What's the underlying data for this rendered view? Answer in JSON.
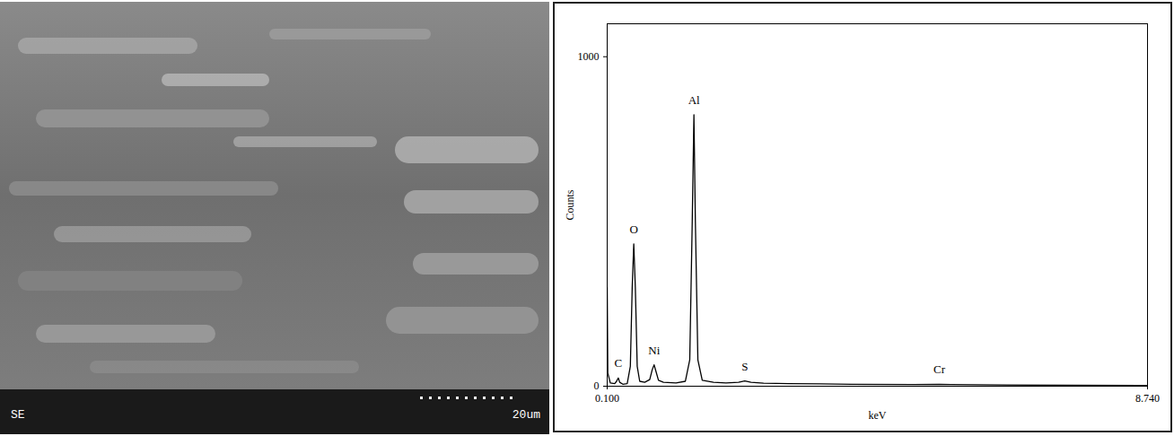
{
  "micrograph": {
    "detector": "SE",
    "scale_bar": "20um"
  },
  "chart_data": {
    "type": "line",
    "xlabel": "keV",
    "ylabel": "Counts",
    "x": [
      0.1,
      0.11,
      0.15,
      0.22,
      0.25,
      0.277,
      0.3,
      0.35,
      0.42,
      0.47,
      0.5,
      0.525,
      0.55,
      0.58,
      0.62,
      0.7,
      0.78,
      0.82,
      0.85,
      0.88,
      0.92,
      1.0,
      1.2,
      1.35,
      1.42,
      1.46,
      1.487,
      1.51,
      1.55,
      1.62,
      1.8,
      2.0,
      2.2,
      2.3,
      2.4,
      2.6,
      3.0,
      3.5,
      4.0,
      5.0,
      5.41,
      5.6,
      6.5,
      7.5,
      8.74
    ],
    "values": [
      300,
      40,
      10,
      8,
      15,
      25,
      12,
      6,
      8,
      60,
      300,
      432,
      300,
      60,
      15,
      12,
      20,
      50,
      65,
      45,
      18,
      12,
      10,
      15,
      80,
      500,
      824,
      500,
      80,
      18,
      12,
      10,
      12,
      16,
      12,
      9,
      8,
      7,
      6,
      5,
      6,
      5,
      4,
      3,
      2
    ],
    "color": "#000000",
    "xlim": [
      0.1,
      8.74
    ],
    "xticks": [
      {
        "value": 0.1,
        "label": "0.100"
      },
      {
        "value": 8.74,
        "label": "8.740"
      }
    ],
    "ylim": [
      0,
      1100
    ],
    "yticks": [
      0,
      1000
    ],
    "grid": false,
    "annotations": [
      {
        "text": "C",
        "x": 0.277,
        "y": 25
      },
      {
        "text": "O",
        "x": 0.525,
        "y": 432
      },
      {
        "text": "Ni",
        "x": 0.85,
        "y": 65
      },
      {
        "text": "Al",
        "x": 1.487,
        "y": 824
      },
      {
        "text": "S",
        "x": 2.3,
        "y": 16
      },
      {
        "text": "Cr",
        "x": 5.41,
        "y": 6
      }
    ]
  }
}
